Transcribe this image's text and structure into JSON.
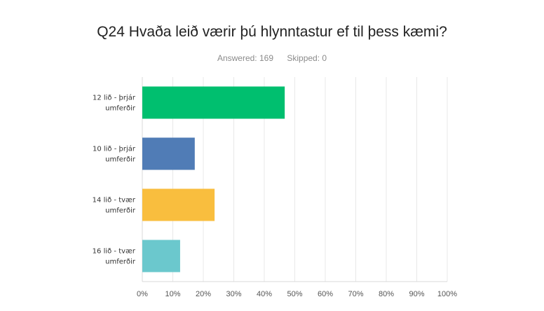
{
  "chart_data": {
    "type": "bar",
    "orientation": "horizontal",
    "title": "Q24 Hvaða leið værir þú hlynntastur ef til þess kæmi?",
    "answered_label": "Answered: 169",
    "skipped_label": "Skipped: 0",
    "categories": [
      [
        "12 lið - þrjár",
        "umferðir"
      ],
      [
        "10 lið - þrjár",
        "umferðir"
      ],
      [
        "14 lið - tvær",
        "umferðir"
      ],
      [
        "16 lið - tvær",
        "umferðir"
      ]
    ],
    "values": [
      46.7,
      17.2,
      23.7,
      12.4
    ],
    "colors": [
      "#00bf6f",
      "#507cb6",
      "#f9be3e",
      "#6bc8cd"
    ],
    "xlim": [
      0,
      100
    ],
    "xticks": [
      "0%",
      "10%",
      "20%",
      "30%",
      "40%",
      "50%",
      "60%",
      "70%",
      "80%",
      "90%",
      "100%"
    ],
    "grid": true,
    "legend": "none"
  }
}
